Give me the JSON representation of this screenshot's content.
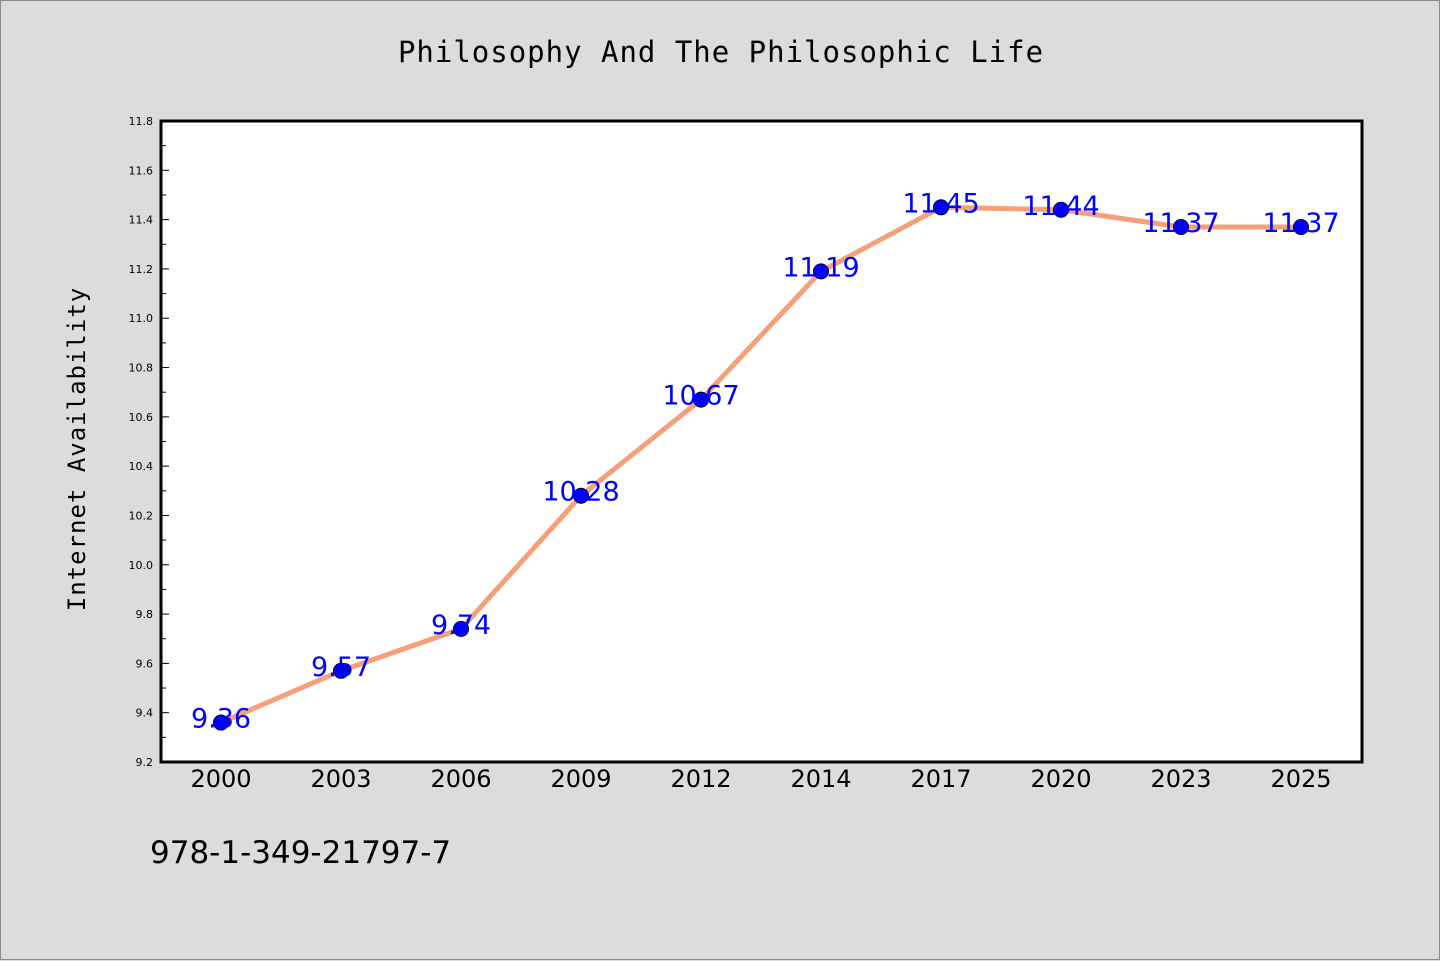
{
  "isbn": "978-1-349-21797-7",
  "chart_data": {
    "type": "line",
    "title": "Philosophy And The Philosophic Life",
    "xlabel": "",
    "ylabel": "Internet Availability",
    "categories": [
      "2000",
      "2003",
      "2006",
      "2009",
      "2012",
      "2014",
      "2017",
      "2020",
      "2023",
      "2025"
    ],
    "series": [
      {
        "values": [
          9.36,
          9.57,
          9.74,
          10.28,
          10.67,
          11.19,
          11.45,
          11.44,
          11.37,
          11.37
        ],
        "line_color": "#f5a07a",
        "marker_color": "#0000ff"
      }
    ],
    "data_labels": [
      "9.36",
      "9.57",
      "9.74",
      "10.28",
      "10.67",
      "11.19",
      "11.45",
      "11.44",
      "11.37",
      "11.37"
    ],
    "ylim": [
      9.2,
      11.8
    ],
    "yticks": [
      "9.2",
      "9.4",
      "9.6",
      "9.8",
      "10.0",
      "10.2",
      "10.4",
      "10.6",
      "10.8",
      "11.0",
      "11.2",
      "11.4",
      "11.6",
      "11.8"
    ],
    "label_color": "#0000ff",
    "grid": false,
    "legend": "none"
  }
}
